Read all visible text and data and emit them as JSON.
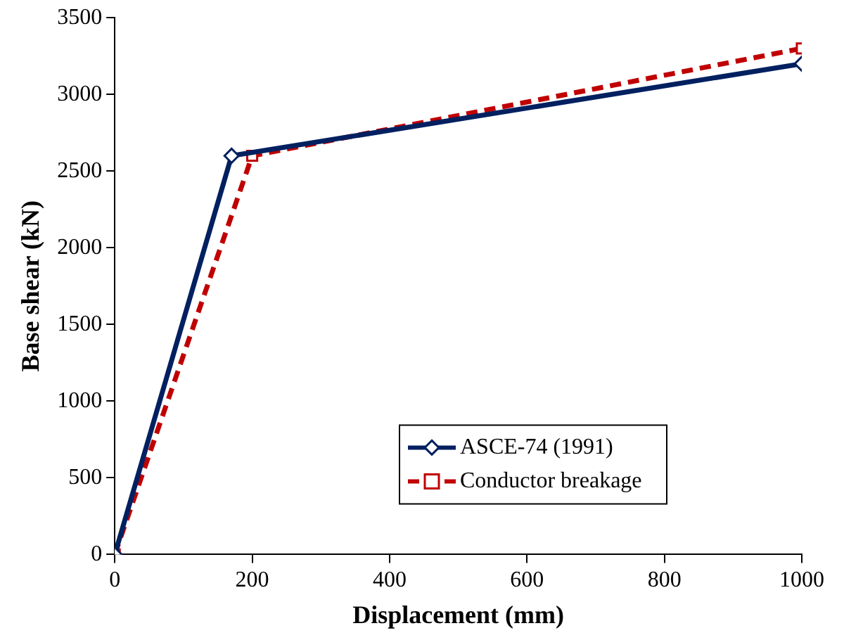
{
  "chart_data": {
    "type": "line",
    "xlabel": "Displacement (mm)",
    "ylabel": "Base shear (kN)",
    "xlim": [
      0,
      1000
    ],
    "xticks": [
      0,
      200,
      400,
      600,
      800,
      1000
    ],
    "ylim": [
      0,
      3500
    ],
    "yticks": [
      0,
      500,
      1000,
      1500,
      2000,
      2500,
      3000,
      3500
    ],
    "grid": false,
    "legend": "bottom right",
    "series": [
      {
        "name": "ASCE-74 (1991)",
        "color": "#002060",
        "x": [
          0,
          170,
          1000
        ],
        "values": [
          0,
          2600,
          3200
        ],
        "marker": "diamond",
        "line_style": "solid"
      },
      {
        "name": "Conductor breakage",
        "color": "#c00000",
        "x": [
          0,
          200,
          1000
        ],
        "values": [
          0,
          2600,
          3300
        ],
        "marker": "square",
        "line_style": "dashed"
      }
    ]
  }
}
